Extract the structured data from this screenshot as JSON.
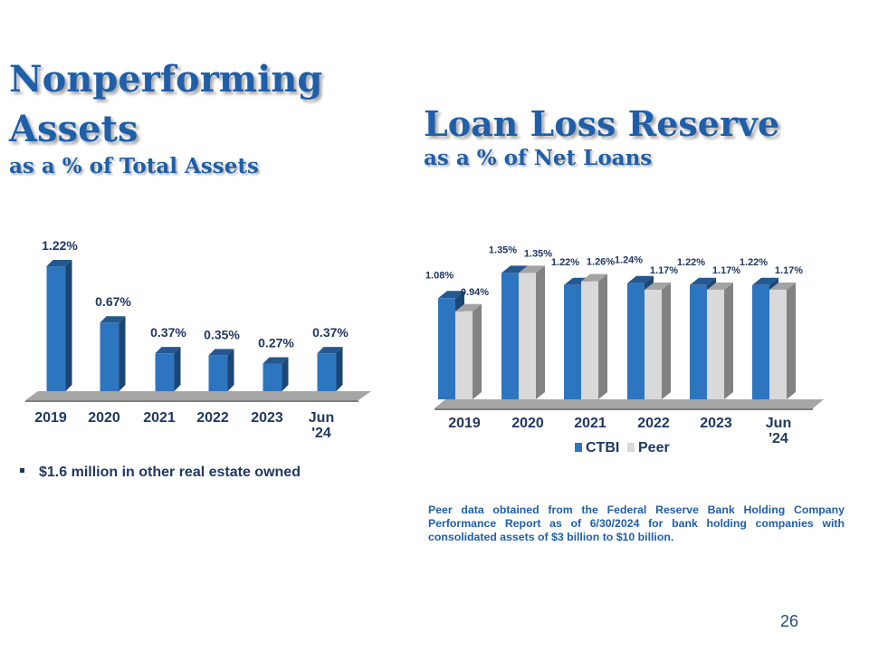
{
  "slide": {
    "npa_title_line1": "Nonperforming",
    "npa_title_line2": "Assets",
    "npa_subtitle": "as a % of Total Assets",
    "llr_title": "Loan Loss Reserve",
    "llr_subtitle": "as a % of Net Loans",
    "bullet": "$1.6 million in other real estate owned",
    "note": "Peer data obtained from the Federal Reserve Bank Holding Company Performance Report as of 6/30/2024 for bank holding companies with consolidated assets of $3 billion to $10 billion.",
    "page_number": "26"
  },
  "colors": {
    "ctbi": "#2E75C0",
    "peer": "#D9D9D9",
    "title": "#1F5FAA",
    "text": "#1F3864"
  },
  "chart_data": [
    {
      "type": "bar",
      "categories": [
        "2019",
        "2020",
        "2021",
        "2022",
        "2023",
        "Jun '24"
      ],
      "series": [
        {
          "values": [
            1.22,
            0.67,
            0.37,
            0.35,
            0.27,
            0.37
          ],
          "labels": [
            "1.22%",
            "0.67%",
            "0.37%",
            "0.35%",
            "0.27%",
            "0.37%"
          ]
        }
      ],
      "ylim": [
        0,
        1.3
      ],
      "legend": "none",
      "grid": false
    },
    {
      "type": "bar",
      "categories": [
        "2019",
        "2020",
        "2021",
        "2022",
        "2023",
        "Jun '24"
      ],
      "series": [
        {
          "name": "CTBI",
          "values": [
            1.08,
            1.35,
            1.22,
            1.24,
            1.22,
            1.22
          ],
          "labels": [
            "1.08%",
            "1.35%",
            "1.22%",
            "1.24%",
            "1.22%",
            "1.22%"
          ]
        },
        {
          "name": "Peer",
          "values": [
            0.94,
            1.35,
            1.26,
            1.17,
            1.17,
            1.17
          ],
          "labels": [
            "0.94%",
            "1.35%",
            "1.26%",
            "1.17%",
            "1.17%",
            "1.17%"
          ]
        }
      ],
      "ylim": [
        0,
        1.45
      ],
      "legend": "bottom",
      "grid": false
    }
  ]
}
